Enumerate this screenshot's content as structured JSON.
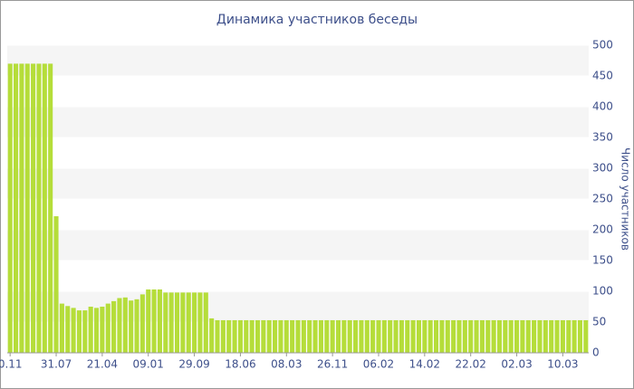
{
  "chart_data": {
    "type": "bar",
    "title": "Динамика участников беседы",
    "y_label": "Число участников",
    "categories": [
      "0.11",
      null,
      null,
      null,
      null,
      null,
      null,
      null,
      "31.07",
      null,
      null,
      null,
      null,
      null,
      null,
      null,
      "21.04",
      null,
      null,
      null,
      null,
      null,
      null,
      null,
      "09.01",
      null,
      null,
      null,
      null,
      null,
      null,
      null,
      "29.09",
      null,
      null,
      null,
      null,
      null,
      null,
      null,
      "18.06",
      null,
      null,
      null,
      null,
      null,
      null,
      null,
      "08.03",
      null,
      null,
      null,
      null,
      null,
      null,
      null,
      "26.11",
      null,
      null,
      null,
      null,
      null,
      null,
      null,
      "06.02",
      null,
      null,
      null,
      null,
      null,
      null,
      null,
      "14.02",
      null,
      null,
      null,
      null,
      null,
      null,
      null,
      "22.02",
      null,
      null,
      null,
      null,
      null,
      null,
      null,
      "02.03",
      null,
      null,
      null,
      null,
      null,
      null,
      null,
      "10.03",
      null,
      null,
      null,
      null
    ],
    "values": [
      470,
      470,
      470,
      470,
      470,
      470,
      470,
      470,
      222,
      80,
      76,
      73,
      69,
      69,
      75,
      73,
      75,
      80,
      84,
      89,
      90,
      85,
      87,
      95,
      103,
      103,
      103,
      98,
      98,
      98,
      98,
      98,
      98,
      98,
      98,
      56,
      53,
      53,
      53,
      53,
      53,
      53,
      53,
      53,
      53,
      53,
      53,
      53,
      53,
      53,
      53,
      53,
      53,
      53,
      53,
      53,
      53,
      53,
      53,
      53,
      53,
      53,
      53,
      53,
      53,
      53,
      53,
      53,
      53,
      53,
      53,
      53,
      53,
      53,
      53,
      53,
      53,
      53,
      53,
      53,
      53,
      53,
      53,
      53,
      53,
      53,
      53,
      53,
      53,
      53,
      53,
      53,
      53,
      53,
      53,
      53,
      53,
      53,
      53,
      53,
      53
    ],
    "color": "#b5dd3a",
    "ylim": [
      0,
      500
    ],
    "yticks": [
      0,
      50,
      100,
      150,
      200,
      250,
      300,
      350,
      400,
      450,
      500
    ],
    "grid": true
  }
}
